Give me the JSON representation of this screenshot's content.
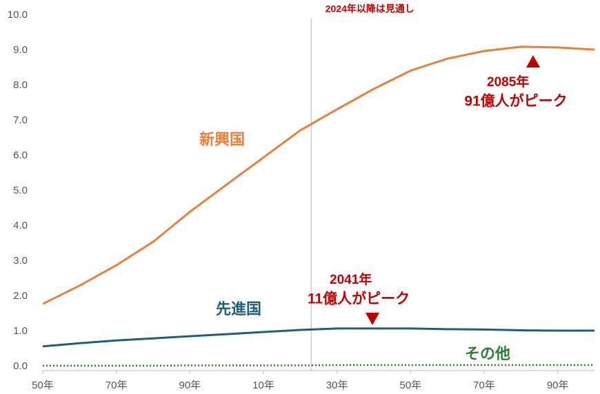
{
  "chart_data": {
    "type": "line",
    "x": [
      1950,
      1960,
      1970,
      1980,
      1990,
      2000,
      2010,
      2020,
      2030,
      2040,
      2050,
      2060,
      2070,
      2080,
      2090,
      2100
    ],
    "series": [
      {
        "name": "新興国",
        "color": "#e8803a",
        "style": "solid",
        "values": [
          1.78,
          2.3,
          2.88,
          3.55,
          4.4,
          5.18,
          5.95,
          6.72,
          7.32,
          7.9,
          8.42,
          8.76,
          8.98,
          9.1,
          9.08,
          9.02
        ]
      },
      {
        "name": "先進国",
        "color": "#1f5f7a",
        "style": "solid",
        "values": [
          0.57,
          0.66,
          0.74,
          0.8,
          0.86,
          0.92,
          0.98,
          1.04,
          1.08,
          1.08,
          1.08,
          1.06,
          1.05,
          1.03,
          1.02,
          1.02
        ]
      },
      {
        "name": "その他",
        "color": "#2e7d32",
        "style": "dotted",
        "values": [
          0.02,
          0.02,
          0.02,
          0.02,
          0.03,
          0.03,
          0.03,
          0.03,
          0.04,
          0.04,
          0.04,
          0.04,
          0.04,
          0.04,
          0.04,
          0.04
        ]
      }
    ],
    "xlim": [
      1950,
      2100
    ],
    "xticks": [
      {
        "value": 1950,
        "label": "50年"
      },
      {
        "value": 1970,
        "label": "70年"
      },
      {
        "value": 1990,
        "label": "90年"
      },
      {
        "value": 2010,
        "label": "10年"
      },
      {
        "value": 2030,
        "label": "30年"
      },
      {
        "value": 2050,
        "label": "50年"
      },
      {
        "value": 2070,
        "label": "70年"
      },
      {
        "value": 2090,
        "label": "90年"
      }
    ],
    "ylim": [
      0,
      10
    ],
    "yticks": [
      {
        "value": 0,
        "label": "0.0"
      },
      {
        "value": 1,
        "label": "1.0"
      },
      {
        "value": 2,
        "label": "2.0"
      },
      {
        "value": 3,
        "label": "3.0"
      },
      {
        "value": 4,
        "label": "4.0"
      },
      {
        "value": 5,
        "label": "5.0"
      },
      {
        "value": 6,
        "label": "6.0"
      },
      {
        "value": 7,
        "label": "7.0"
      },
      {
        "value": 8,
        "label": "8.0"
      },
      {
        "value": 9,
        "label": "9.0"
      },
      {
        "value": 10,
        "label": "10.0"
      }
    ],
    "forecast_x": 2023,
    "forecast_label": "2024年以降は見通し",
    "annotations": [
      {
        "lines": [
          "2085年",
          "91億人がピーク"
        ]
      },
      {
        "lines": [
          "2041年",
          "11億人がピーク"
        ]
      }
    ],
    "grid": false
  }
}
